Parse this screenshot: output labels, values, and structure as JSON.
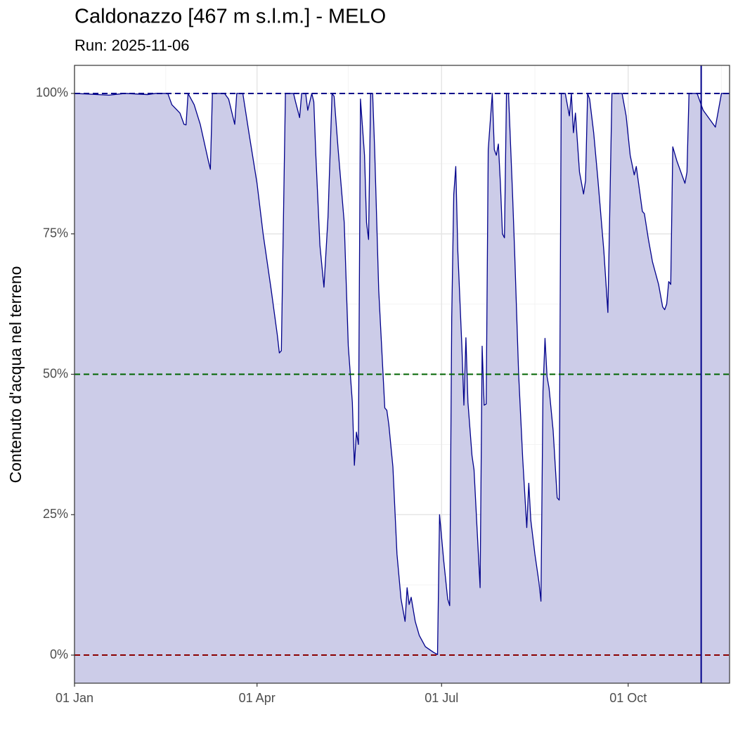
{
  "chart_data": {
    "type": "area",
    "title": "Caldonazzo [467 m s.l.m.] - MELO",
    "subtitle": "Run: 2025-11-06",
    "y_label": "Contenuto d'acqua nel terreno",
    "color": "#00008b",
    "fill": "#cccce8",
    "x": [
      "01-01",
      "01-18",
      "01-26",
      "02-06",
      "02-10",
      "02-16",
      "02-18",
      "02-22",
      "02-24",
      "02-25",
      "02-26",
      "03-01",
      "03-04",
      "03-08",
      "03-09",
      "03-10",
      "03-16",
      "03-18",
      "03-21",
      "03-22",
      "03-25",
      "03-28",
      "04-01",
      "04-04",
      "04-08",
      "04-11",
      "04-12",
      "04-13",
      "04-15",
      "04-19",
      "04-20",
      "04-22",
      "04-23",
      "04-25",
      "04-26",
      "04-28",
      "04-29",
      "04-30",
      "05-02",
      "05-04",
      "05-06",
      "05-08",
      "05-09",
      "05-11",
      "05-14",
      "05-16",
      "05-18",
      "05-19",
      "05-20",
      "05-21",
      "05-22",
      "05-24",
      "05-25",
      "05-26",
      "05-27",
      "05-28",
      "05-29",
      "05-31",
      "06-03",
      "06-04",
      "06-05",
      "06-07",
      "06-09",
      "06-11",
      "06-13",
      "06-14",
      "06-15",
      "06-16",
      "06-18",
      "06-20",
      "06-23",
      "06-27",
      "06-29",
      "06-30",
      "07-02",
      "07-04",
      "07-05",
      "07-06",
      "07-07",
      "07-08",
      "07-09",
      "07-11",
      "07-12",
      "07-13",
      "07-14",
      "07-16",
      "07-17",
      "07-19",
      "07-20",
      "07-21",
      "07-22",
      "07-23",
      "07-24",
      "07-26",
      "07-27",
      "07-28",
      "07-29",
      "07-30",
      "07-31",
      "08-01",
      "08-02",
      "08-03",
      "08-05",
      "08-06",
      "08-08",
      "08-10",
      "08-12",
      "08-13",
      "08-14",
      "08-16",
      "08-18",
      "08-19",
      "08-20",
      "08-21",
      "08-22",
      "08-23",
      "08-25",
      "08-27",
      "08-28",
      "08-29",
      "08-31",
      "09-02",
      "09-03",
      "09-04",
      "09-05",
      "09-07",
      "09-09",
      "09-10",
      "09-11",
      "09-12",
      "09-14",
      "09-16",
      "09-19",
      "09-21",
      "09-23",
      "09-28",
      "09-30",
      "10-02",
      "10-04",
      "10-05",
      "10-08",
      "10-09",
      "10-11",
      "10-13",
      "10-16",
      "10-18",
      "10-19",
      "10-20",
      "10-21",
      "10-22",
      "10-23",
      "10-25",
      "10-28",
      "10-29",
      "10-30",
      "10-31",
      "11-04",
      "11-06",
      "11-07",
      "11-11",
      "11-13",
      "11-16",
      "11-20"
    ],
    "values": [
      100,
      99.7,
      100,
      99.8,
      100,
      100,
      98,
      96.5,
      94.5,
      94.4,
      100,
      98,
      94.5,
      88,
      86.5,
      100,
      100,
      99,
      94.5,
      100,
      100,
      93,
      84,
      75,
      65,
      57,
      53.8,
      54.2,
      100,
      100,
      98.5,
      95.7,
      100,
      100,
      97,
      100,
      98.5,
      89,
      73,
      65.5,
      78,
      100,
      99.5,
      90,
      77,
      55,
      45,
      33.8,
      39.7,
      37.5,
      99,
      89,
      77,
      74,
      100,
      100,
      90,
      65,
      44,
      43.6,
      41,
      33.5,
      18,
      10,
      6,
      12,
      9,
      10.3,
      6,
      3.5,
      1.5,
      0.5,
      0.1,
      25,
      17,
      10,
      8.8,
      60,
      82,
      87,
      72,
      55,
      44.5,
      56.5,
      45,
      35.5,
      33,
      19,
      12,
      55,
      44.5,
      44.7,
      90,
      100,
      90,
      89,
      91,
      84,
      75,
      74.3,
      100,
      100,
      82,
      72,
      50,
      35,
      22.7,
      30.6,
      24,
      18,
      13,
      9.6,
      47,
      56.4,
      49.6,
      47.5,
      40,
      28,
      27.6,
      100,
      100,
      96,
      100,
      93,
      96.5,
      86,
      82.1,
      84.5,
      100,
      99,
      93,
      85,
      72,
      61,
      100,
      100,
      96,
      89,
      85.5,
      87,
      79,
      78.6,
      74,
      70,
      66,
      62,
      61.5,
      62.5,
      66.5,
      66,
      90.5,
      88,
      85,
      84,
      86,
      100,
      100,
      98,
      97,
      95,
      94,
      100,
      100
    ],
    "xlim": [
      "01-01",
      "11-20"
    ],
    "xticks": [
      {
        "value": "01-01",
        "label": "01 Jan"
      },
      {
        "value": "04-01",
        "label": "01 Apr"
      },
      {
        "value": "07-01",
        "label": "01 Jul"
      },
      {
        "value": "10-01",
        "label": "01 Oct"
      }
    ],
    "xminor": [
      "02-15",
      "05-16",
      "08-16",
      "11-16"
    ],
    "ylim": [
      -5,
      105
    ],
    "yticks": [
      {
        "value": 0,
        "label": "0%"
      },
      {
        "value": 25,
        "label": "25%"
      },
      {
        "value": 50,
        "label": "50%"
      },
      {
        "value": 75,
        "label": "75%"
      },
      {
        "value": 100,
        "label": "100%"
      }
    ],
    "yminor": [
      12.5,
      37.5,
      62.5,
      87.5
    ],
    "grid": true,
    "hlines": [
      {
        "value": 100,
        "color": "#00008b"
      },
      {
        "value": 50,
        "color": "#006400"
      },
      {
        "value": 0,
        "color": "#8b0000"
      }
    ],
    "vline": {
      "value": "11-06",
      "color": "#00008b"
    }
  }
}
